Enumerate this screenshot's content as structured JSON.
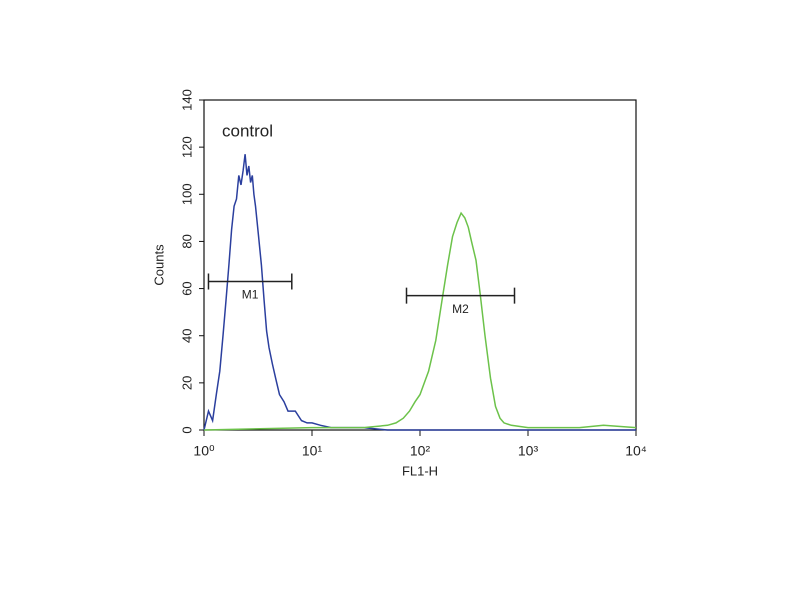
{
  "chart_data": {
    "type": "histogram-overlay",
    "xlabel": "FL1-H",
    "ylabel": "Counts",
    "annotation": "control",
    "xscale": "log",
    "xlim": [
      1,
      10000
    ],
    "xticks": [
      {
        "value": 1,
        "label": "10⁰"
      },
      {
        "value": 10,
        "label": "10¹"
      },
      {
        "value": 100,
        "label": "10²"
      },
      {
        "value": 1000,
        "label": "10³"
      },
      {
        "value": 10000,
        "label": "10⁴"
      }
    ],
    "ylim": [
      0,
      140
    ],
    "yticks": [
      0,
      20,
      40,
      60,
      80,
      100,
      120,
      140
    ],
    "series": [
      {
        "color": "#2b3f9e",
        "x": [
          1.0,
          1.1,
          1.2,
          1.3,
          1.4,
          1.5,
          1.6,
          1.7,
          1.8,
          1.9,
          2.0,
          2.1,
          2.2,
          2.3,
          2.4,
          2.5,
          2.6,
          2.7,
          2.8,
          2.9,
          3.0,
          3.2,
          3.4,
          3.6,
          3.8,
          4.0,
          4.3,
          4.6,
          5.0,
          5.5,
          6,
          7,
          8,
          9,
          10,
          12,
          15,
          20,
          30,
          50,
          100,
          1000,
          10000
        ],
        "values": [
          0,
          8,
          4,
          15,
          25,
          40,
          55,
          70,
          85,
          95,
          98,
          108,
          104,
          110,
          117,
          108,
          112,
          105,
          108,
          100,
          95,
          82,
          70,
          55,
          42,
          35,
          28,
          22,
          15,
          12,
          8,
          8,
          4,
          3,
          3,
          2,
          1,
          1,
          1,
          0,
          0,
          0,
          0
        ]
      },
      {
        "color": "#6cc24a",
        "x": [
          1,
          10,
          30,
          50,
          60,
          70,
          80,
          90,
          100,
          120,
          140,
          160,
          180,
          200,
          220,
          240,
          260,
          280,
          300,
          330,
          360,
          400,
          450,
          500,
          550,
          600,
          700,
          1000,
          3000,
          5000,
          10000
        ],
        "values": [
          0,
          1,
          1,
          2,
          3,
          5,
          8,
          12,
          15,
          25,
          38,
          55,
          70,
          82,
          88,
          92,
          90,
          86,
          80,
          72,
          58,
          40,
          22,
          10,
          5,
          3,
          2,
          1,
          1,
          2,
          1
        ]
      }
    ],
    "markers": [
      {
        "label": "M1",
        "range": [
          1.1,
          6.5
        ],
        "y": 63
      },
      {
        "label": "M2",
        "range": [
          75,
          750
        ],
        "y": 57
      }
    ]
  }
}
